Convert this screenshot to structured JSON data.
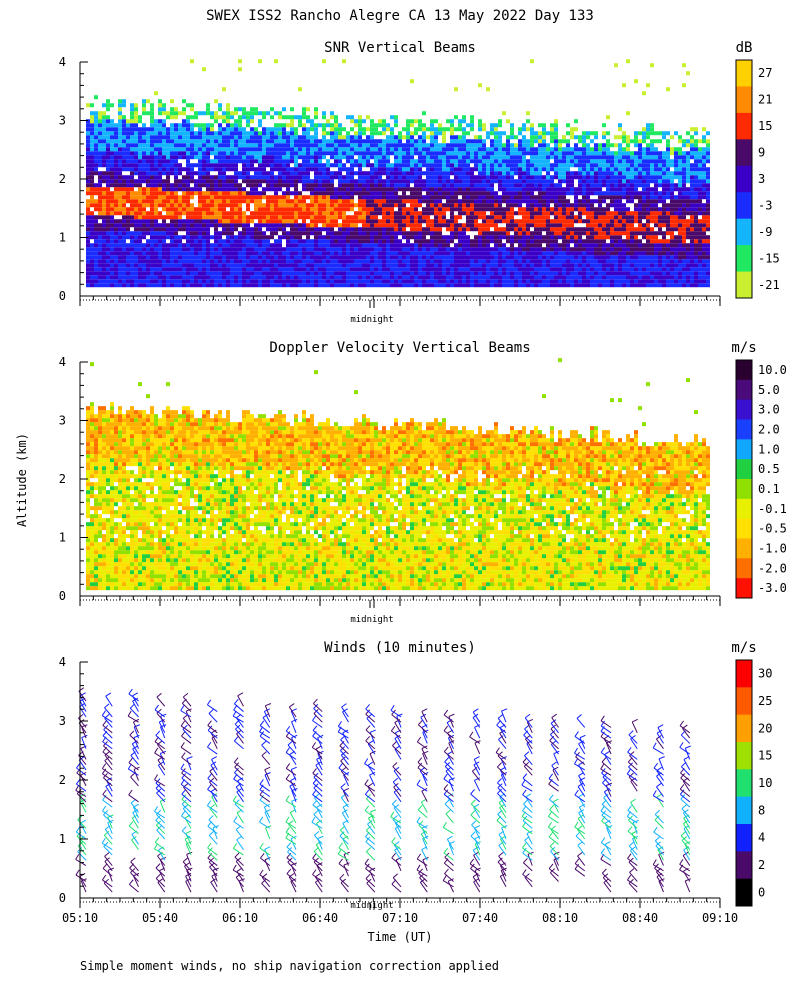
{
  "figure": {
    "title": "SWEX ISS2 Rancho Alegre CA  13 May 2022 Day 133",
    "ylabel": "Altitude (km)",
    "xlabel": "Time (UT)",
    "footnote": "Simple moment winds, no ship navigation correction applied",
    "midnight_label": "midnight"
  },
  "chart_data": [
    {
      "type": "heatmap",
      "title": "SNR Vertical Beams",
      "unit": "dB",
      "ylabel": "Altitude (km)",
      "ylim": [
        0,
        4
      ],
      "y_ticks": [
        "0",
        "1",
        "2",
        "3",
        "4"
      ],
      "xlim_utc": [
        "05:10",
        "09:10"
      ],
      "colorbar": {
        "labels": [
          "27",
          "21",
          "15",
          "9",
          "3",
          "-3",
          "-9",
          "-15",
          "-21"
        ],
        "colors": [
          "#ffd000",
          "#ff8c00",
          "#ff2a00",
          "#4a0a6a",
          "#3a00c8",
          "#1a2cff",
          "#14b4ff",
          "#20e860",
          "#c8f030"
        ]
      }
    },
    {
      "type": "heatmap",
      "title": "Doppler Velocity Vertical Beams",
      "unit": "m/s",
      "ylabel": "Altitude (km)",
      "ylim": [
        0,
        4
      ],
      "y_ticks": [
        "0",
        "1",
        "2",
        "3",
        "4"
      ],
      "xlim_utc": [
        "05:10",
        "09:10"
      ],
      "colorbar": {
        "labels": [
          "10.0",
          "5.0",
          "3.0",
          "2.0",
          "1.0",
          "0.5",
          "0.1",
          "-0.1",
          "-0.5",
          "-1.0",
          "-2.0",
          "-3.0"
        ],
        "colors": [
          "#2a0030",
          "#4a0a7a",
          "#3a10d0",
          "#1a40ff",
          "#10a8ff",
          "#20d040",
          "#90e000",
          "#e8f000",
          "#ffe000",
          "#ffb000",
          "#ff7000",
          "#ff1000"
        ]
      }
    },
    {
      "type": "wind-barbs",
      "title": "Winds (10 minutes)",
      "unit": "m/s",
      "ylabel": "Altitude (km)",
      "ylim": [
        0,
        4
      ],
      "y_ticks": [
        "0",
        "1",
        "2",
        "3",
        "4"
      ],
      "x_ticks": [
        "05:10",
        "05:40",
        "06:10",
        "06:40",
        "07:10",
        "07:40",
        "08:10",
        "08:40",
        "09:10"
      ],
      "colorbar": {
        "labels": [
          "30",
          "25",
          "20",
          "15",
          "10",
          "8",
          "4",
          "2",
          "0"
        ],
        "colors": [
          "#ff0000",
          "#ff5a00",
          "#ffa000",
          "#a0e000",
          "#20e070",
          "#10b0ff",
          "#1020ff",
          "#4a0a6a",
          "#000000"
        ]
      }
    }
  ]
}
